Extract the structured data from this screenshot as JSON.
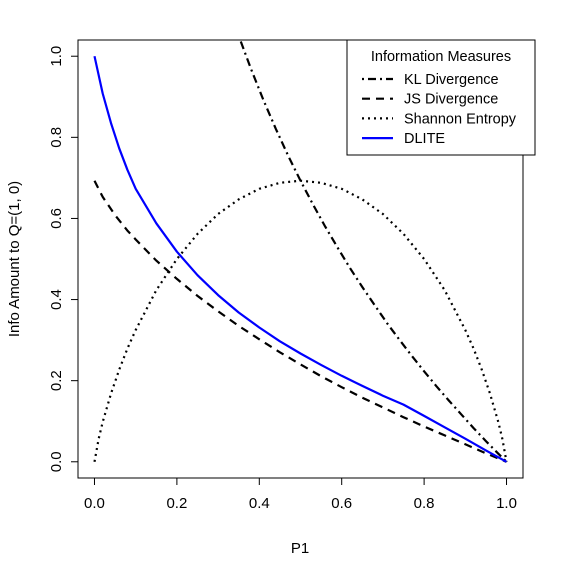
{
  "chart_data": {
    "type": "line",
    "xlabel": "P1",
    "ylabel": "Info Amount to Q=(1, 0)",
    "xlim": [
      -0.04,
      1.04
    ],
    "ylim": [
      -0.04,
      1.04
    ],
    "x_ticks": [
      "0.0",
      "0.2",
      "0.4",
      "0.6",
      "0.8",
      "1.0"
    ],
    "y_ticks": [
      "0.0",
      "0.2",
      "0.4",
      "0.6",
      "0.8",
      "1.0"
    ],
    "grid": false,
    "legend": {
      "title": "Information Measures",
      "placement": "top-right"
    },
    "series": [
      {
        "name": "KL Divergence",
        "color": "#000000",
        "dash": "dotdash",
        "x": [
          0.35,
          0.38,
          0.41,
          0.44,
          0.47,
          0.5,
          0.53,
          0.56,
          0.59,
          0.62,
          0.65,
          0.68,
          0.71,
          0.74,
          0.77,
          0.8,
          0.83,
          0.86,
          0.89,
          0.92,
          0.95,
          0.98,
          1.0
        ],
        "values": [
          1.05,
          0.968,
          0.892,
          0.821,
          0.755,
          0.693,
          0.635,
          0.58,
          0.528,
          0.478,
          0.431,
          0.386,
          0.342,
          0.301,
          0.261,
          0.223,
          0.186,
          0.151,
          0.117,
          0.083,
          0.051,
          0.02,
          0.0
        ]
      },
      {
        "name": "JS Divergence",
        "color": "#000000",
        "dash": "dashed",
        "x": [
          0.0,
          0.02,
          0.05,
          0.08,
          0.1,
          0.15,
          0.2,
          0.25,
          0.3,
          0.35,
          0.4,
          0.45,
          0.5,
          0.55,
          0.6,
          0.65,
          0.7,
          0.75,
          0.8,
          0.85,
          0.9,
          0.95,
          1.0
        ],
        "values": [
          0.693,
          0.653,
          0.608,
          0.57,
          0.548,
          0.496,
          0.451,
          0.409,
          0.371,
          0.335,
          0.302,
          0.27,
          0.24,
          0.211,
          0.184,
          0.158,
          0.134,
          0.11,
          0.087,
          0.065,
          0.043,
          0.021,
          0.0
        ]
      },
      {
        "name": "Shannon Entropy",
        "color": "#000000",
        "dash": "dotted",
        "x": [
          0.0,
          0.01,
          0.02,
          0.04,
          0.06,
          0.08,
          0.1,
          0.15,
          0.2,
          0.25,
          0.3,
          0.35,
          0.4,
          0.45,
          0.5,
          0.55,
          0.6,
          0.65,
          0.7,
          0.75,
          0.8,
          0.85,
          0.9,
          0.92,
          0.94,
          0.96,
          0.98,
          0.99,
          1.0
        ],
        "values": [
          0.0,
          0.056,
          0.098,
          0.168,
          0.227,
          0.279,
          0.325,
          0.423,
          0.5,
          0.562,
          0.611,
          0.647,
          0.673,
          0.688,
          0.693,
          0.688,
          0.673,
          0.647,
          0.611,
          0.562,
          0.5,
          0.423,
          0.325,
          0.279,
          0.227,
          0.168,
          0.098,
          0.056,
          0.0
        ]
      },
      {
        "name": "DLITE",
        "color": "#0000ff",
        "dash": "solid",
        "x": [
          0.0,
          0.02,
          0.04,
          0.06,
          0.08,
          0.1,
          0.15,
          0.2,
          0.25,
          0.3,
          0.35,
          0.4,
          0.45,
          0.5,
          0.55,
          0.6,
          0.65,
          0.7,
          0.75,
          0.8,
          0.85,
          0.9,
          0.95,
          1.0
        ],
        "values": [
          1.0,
          0.908,
          0.835,
          0.773,
          0.72,
          0.673,
          0.588,
          0.518,
          0.46,
          0.411,
          0.368,
          0.331,
          0.297,
          0.267,
          0.239,
          0.212,
          0.187,
          0.163,
          0.141,
          0.113,
          0.085,
          0.057,
          0.028,
          0.0
        ]
      }
    ]
  }
}
